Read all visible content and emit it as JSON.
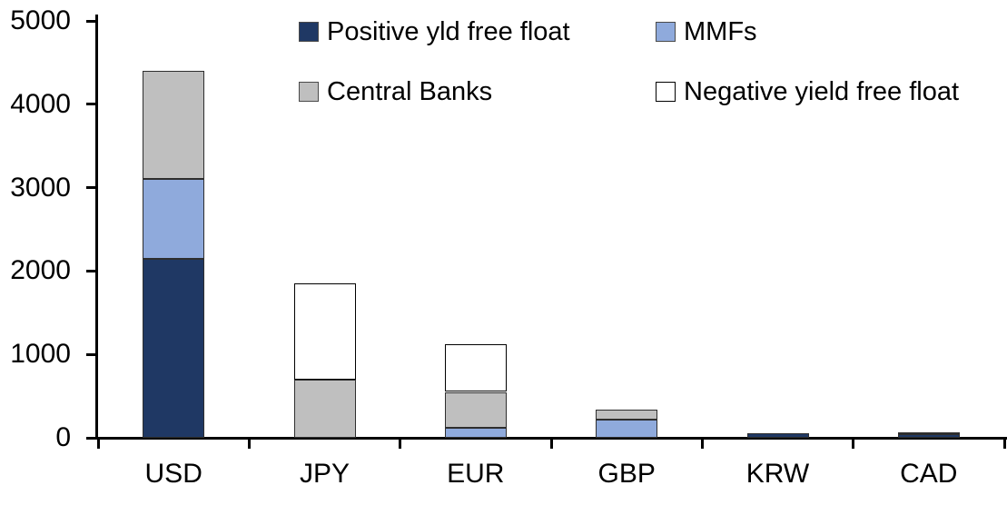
{
  "chart_data": {
    "type": "bar",
    "stacked": true,
    "title": "",
    "xlabel": "",
    "ylabel": "",
    "categories": [
      "USD",
      "JPY",
      "EUR",
      "GBP",
      "KRW",
      "CAD"
    ],
    "series": [
      {
        "name": "Positive yld free float",
        "color": "#1F3864",
        "values": [
          2150,
          0,
          0,
          0,
          50,
          40
        ]
      },
      {
        "name": "MMFs",
        "color": "#8FAADC",
        "values": [
          950,
          0,
          120,
          220,
          0,
          0
        ]
      },
      {
        "name": "Central Banks",
        "color": "#BFBFBF",
        "values": [
          1300,
          700,
          430,
          120,
          0,
          30
        ]
      },
      {
        "name": "Negative yield free float",
        "color": "#FFFFFF",
        "values": [
          0,
          1150,
          570,
          0,
          0,
          0
        ]
      }
    ],
    "totals": [
      4400,
      1850,
      1120,
      340,
      50,
      70
    ],
    "ylim": [
      0,
      5000
    ],
    "ytick_interval": 1000,
    "ytick_labels": [
      "0",
      "1000",
      "2000",
      "3000",
      "4000",
      "5000"
    ],
    "grid": false,
    "legend_position": "top",
    "legend_rows": [
      [
        "Positive yld free float",
        "MMFs"
      ],
      [
        "Central Banks",
        "Negative yield free float"
      ]
    ],
    "axis_color": "#000000",
    "text_color": "#000000"
  }
}
